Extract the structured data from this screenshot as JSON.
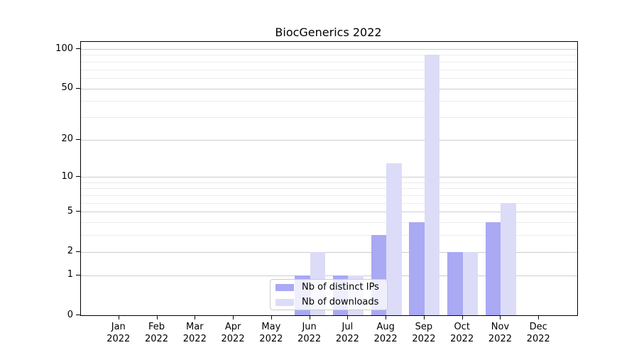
{
  "chart_data": {
    "type": "bar",
    "title": "BiocGenerics 2022",
    "categories": [
      "Jan",
      "Feb",
      "Mar",
      "Apr",
      "May",
      "Jun",
      "Jul",
      "Aug",
      "Sep",
      "Oct",
      "Nov",
      "Dec"
    ],
    "category_year": "2022",
    "series": [
      {
        "name": "Nb of distinct IPs",
        "color": "#a9a9f4",
        "values": [
          0,
          0,
          0,
          0,
          0,
          1,
          1,
          3,
          4,
          2,
          4,
          0
        ]
      },
      {
        "name": "Nb of downloads",
        "color": "#dcdcf8",
        "values": [
          0,
          0,
          0,
          0,
          0,
          2,
          1,
          13,
          90,
          2,
          6,
          0
        ]
      }
    ],
    "yscale": "log1p",
    "ylim": [
      0,
      113
    ],
    "y_major_ticks": [
      0,
      1,
      2,
      5,
      10,
      20,
      50,
      100
    ],
    "y_minor_ticks": [
      3,
      4,
      6,
      7,
      8,
      9,
      30,
      40,
      60,
      70,
      80,
      90
    ],
    "xlabel": "",
    "ylabel": "",
    "grid": "horizontal",
    "legend_position": "lower center",
    "axis_color": "#000000",
    "major_grid_color": "#cccccc",
    "minor_grid_color": "#ececec"
  }
}
